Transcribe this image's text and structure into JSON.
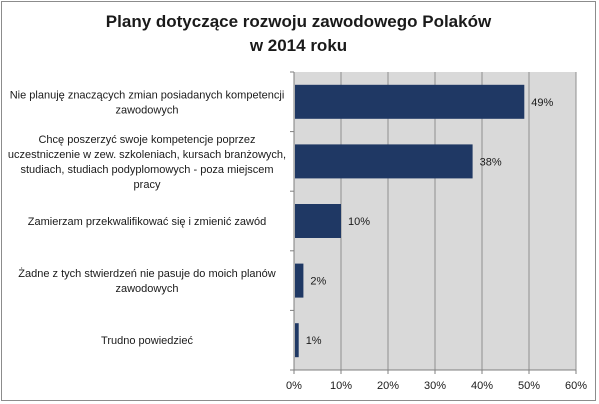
{
  "chart_data": {
    "type": "bar",
    "orientation": "horizontal",
    "title_line1": "Plany dotyczące rozwoju zawodowego Polaków",
    "title_line2": "w 2014 roku",
    "categories": [
      [
        "Nie planuję znaczących zmian posiadanych kompetencji",
        "zawodowych"
      ],
      [
        "Chcę poszerzyć swoje kompetencje poprzez",
        "uczestniczenie w zew. szkoleniach, kursach branżowych,",
        "studiach, studiach podyplomowych - poza miejscem",
        "pracy"
      ],
      [
        "Zamierzam przekwalifikować się i zmienić zawód"
      ],
      [
        "Żadne z tych stwierdzeń nie pasuje do moich planów",
        "zawodowych"
      ],
      [
        "Trudno powiedzieć"
      ]
    ],
    "values": [
      49,
      38,
      10,
      2,
      1
    ],
    "value_labels": [
      "49%",
      "38%",
      "10%",
      "2%",
      "1%"
    ],
    "xlim": [
      0,
      60
    ],
    "xticks": [
      0,
      10,
      20,
      30,
      40,
      50,
      60
    ],
    "xtick_labels": [
      "0%",
      "10%",
      "20%",
      "30%",
      "40%",
      "50%",
      "60%"
    ],
    "grid": true,
    "bar_color": "#1f3864",
    "plot_bg": "#d9d9d9",
    "legend": "none"
  }
}
